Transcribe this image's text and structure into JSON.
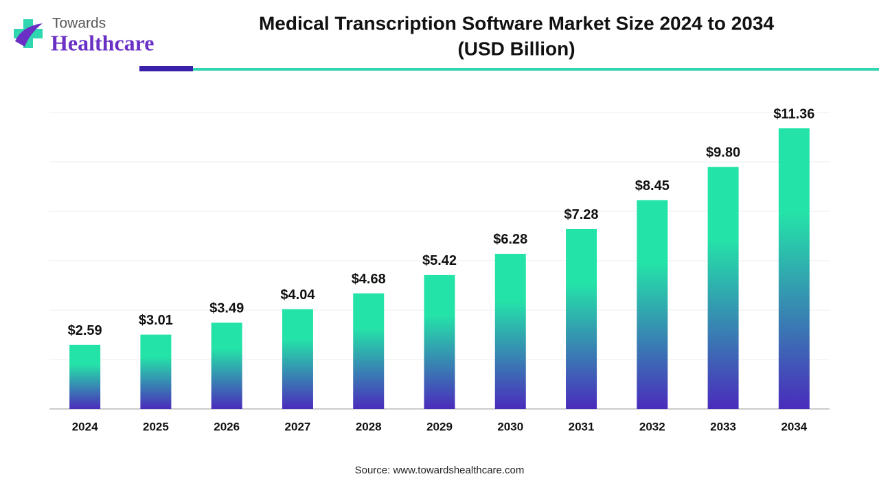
{
  "brand": {
    "line1": "Towards",
    "line2": "Healthcare"
  },
  "chart_data": {
    "type": "bar",
    "title": "Medical Transcription Software Market Size 2024 to 2034",
    "subtitle": "(USD Billion)",
    "categories": [
      "2024",
      "2025",
      "2026",
      "2027",
      "2028",
      "2029",
      "2030",
      "2031",
      "2032",
      "2033",
      "2034"
    ],
    "values": [
      2.59,
      3.01,
      3.49,
      4.04,
      4.68,
      5.42,
      6.28,
      7.28,
      8.45,
      9.8,
      11.36
    ],
    "value_labels": [
      "$2.59",
      "$3.01",
      "$3.49",
      "$4.04",
      "$4.68",
      "$5.42",
      "$6.28",
      "$7.28",
      "$8.45",
      "$9.80",
      "$11.36"
    ],
    "gradient": [
      "#24e3a8",
      "#4a2cbc"
    ],
    "ylim": [
      0,
      12
    ],
    "yticks": [
      0,
      2,
      4,
      6,
      8,
      10,
      12
    ],
    "grid": true,
    "source": "Source: www.towardshealthcare.com"
  }
}
